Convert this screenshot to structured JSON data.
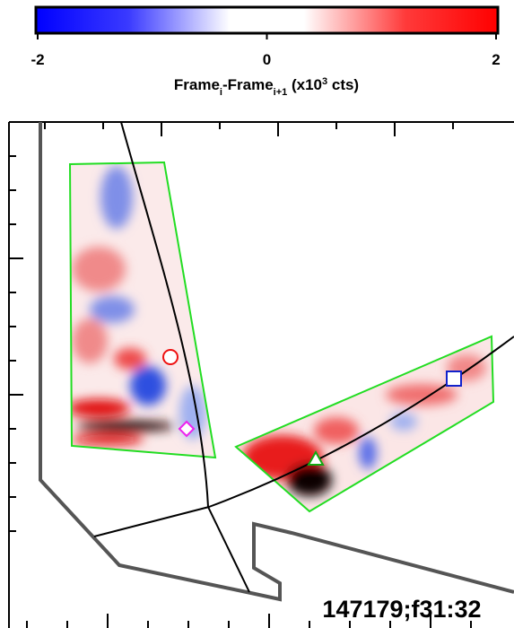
{
  "colorbar": {
    "lim": [
      -2,
      2
    ],
    "ticks": [
      -2,
      0,
      2
    ],
    "label": {
      "main": "Frame",
      "sub1": "i",
      "mid": "-Frame",
      "sub2": "i+1",
      "tail1": " (x10",
      "sup": "3",
      "tail2": " cts)"
    }
  },
  "annotation": "147179;f31:32"
}
